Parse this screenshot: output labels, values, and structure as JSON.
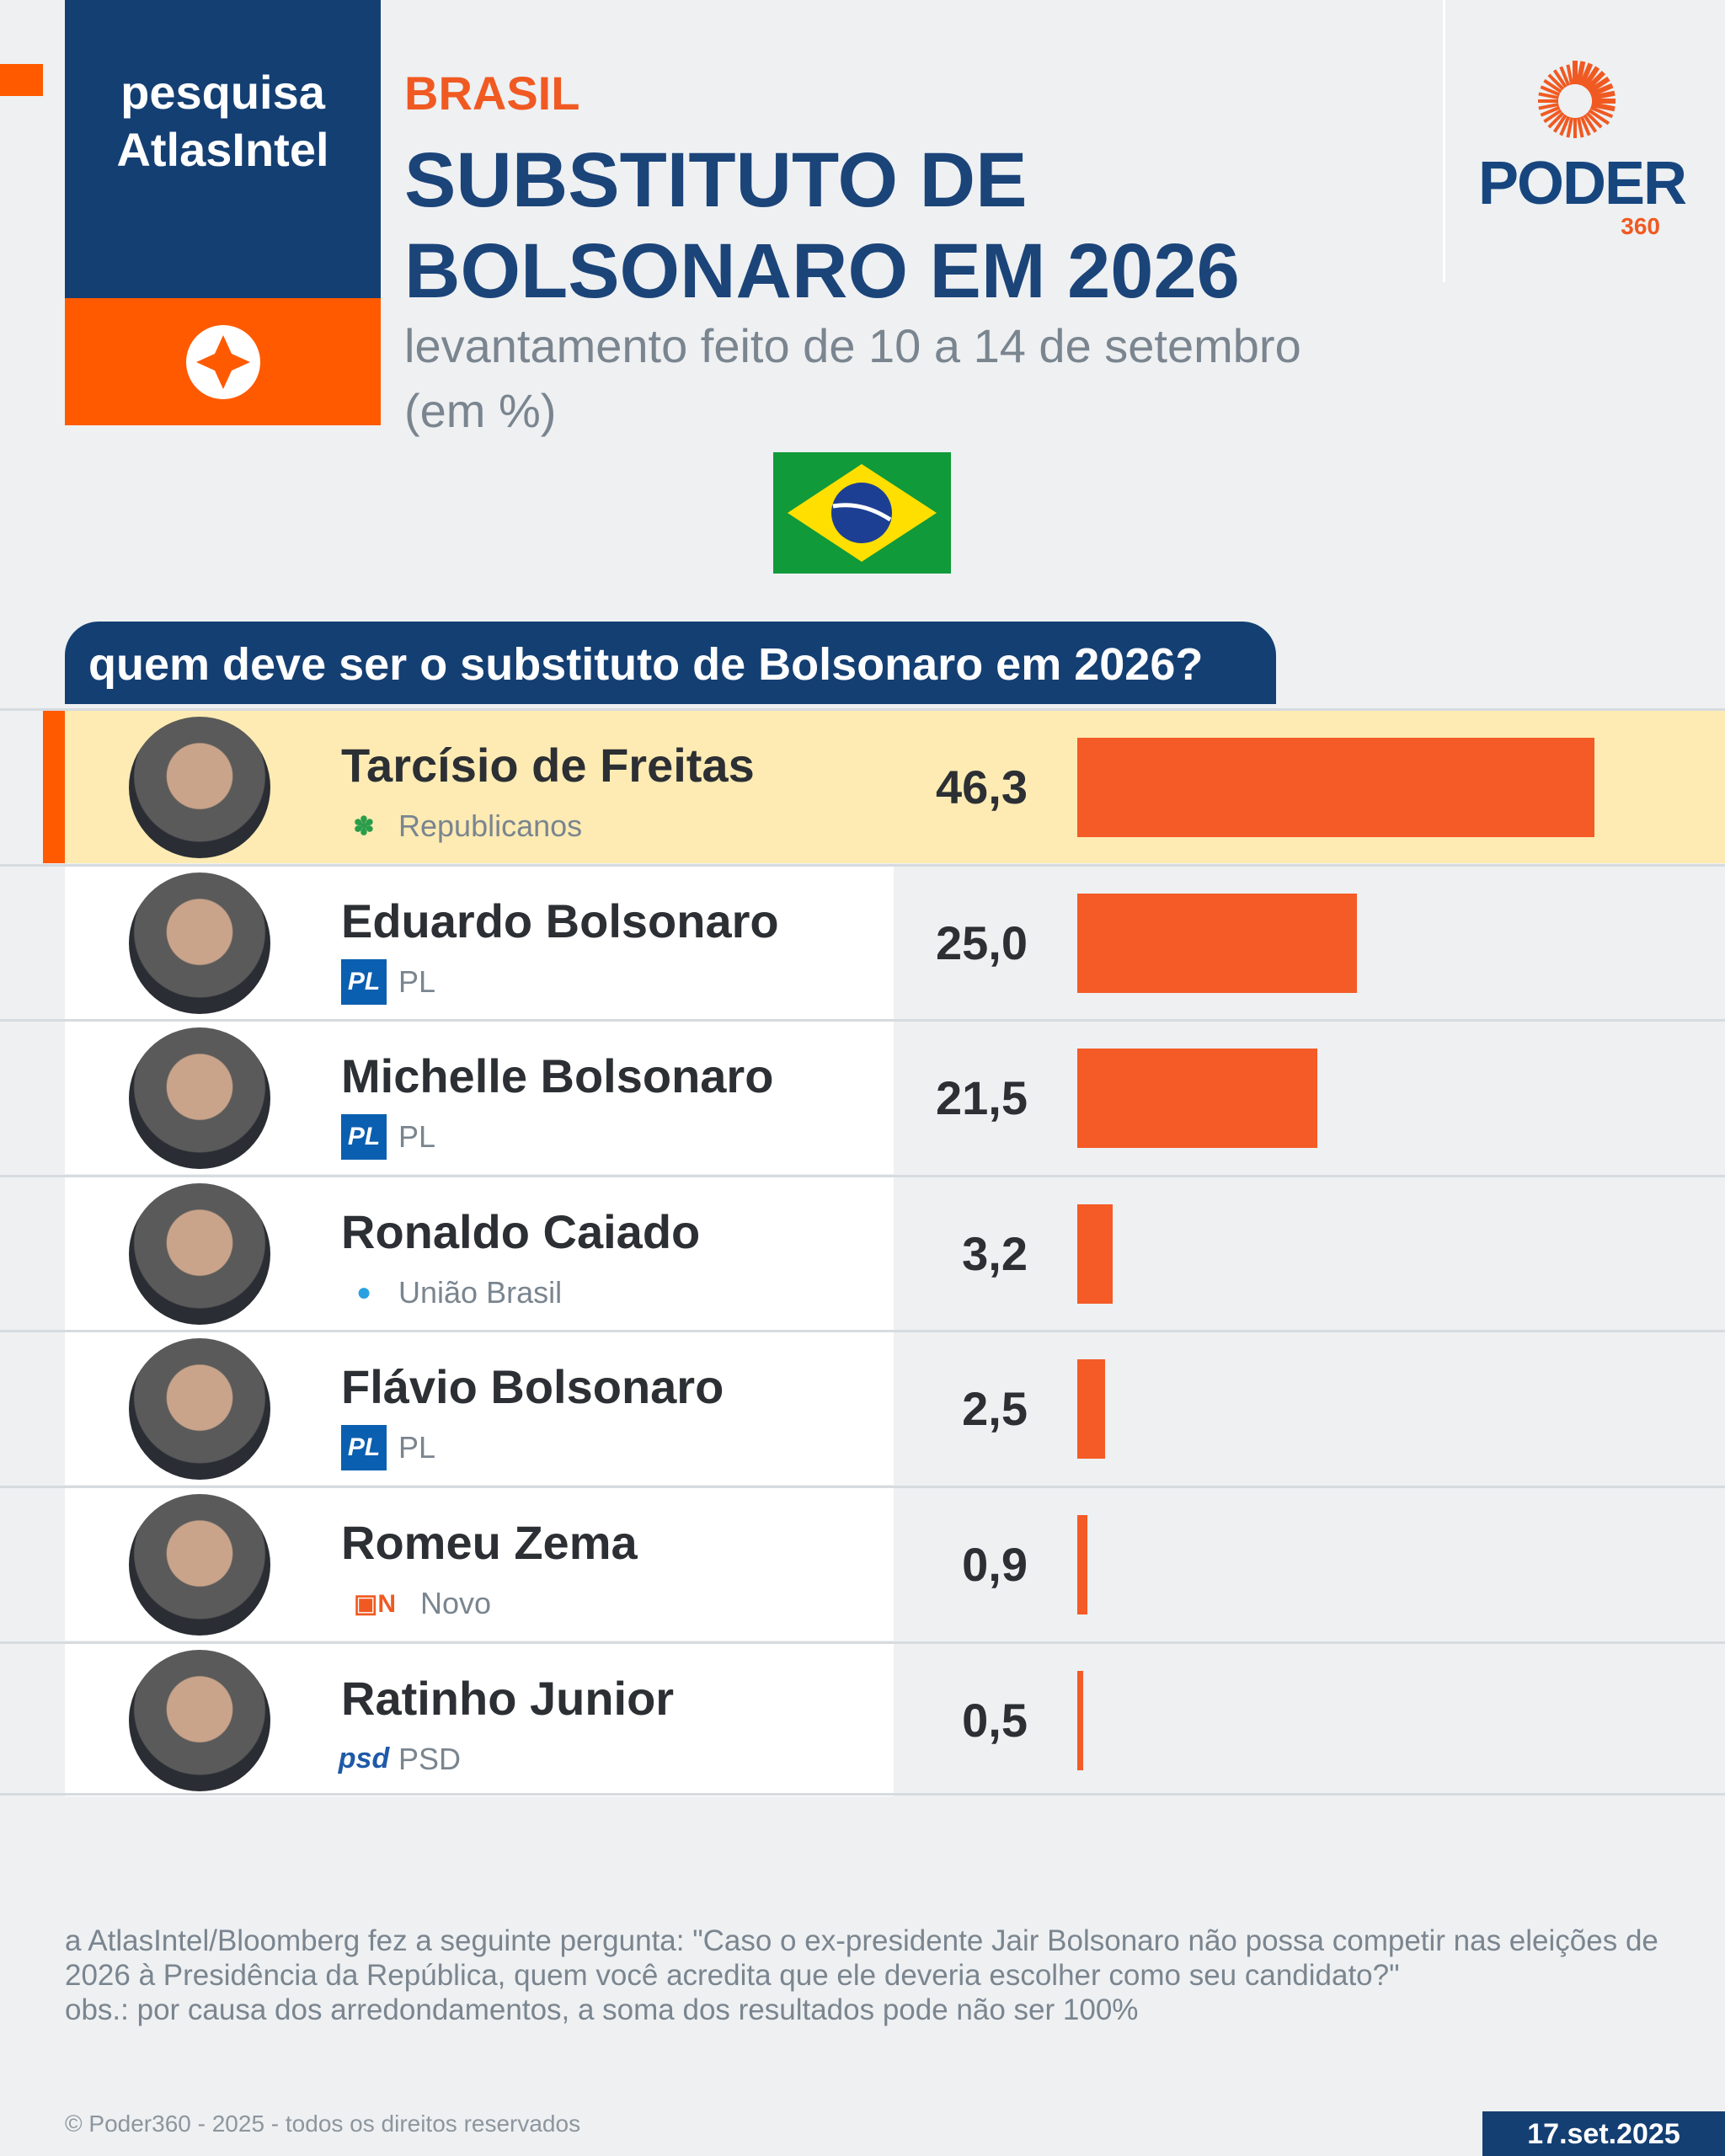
{
  "header": {
    "brand_line1": "pesquisa",
    "brand_line2": "AtlasIntel",
    "region": "BRASIL",
    "title_line1": "SUBSTITUTO DE",
    "title_line2": "BOLSONARO EM 2026",
    "subtitle_line1": "levantamento feito de 10 a 14 de setembro",
    "subtitle_line2": "(em %)"
  },
  "logo": {
    "name": "PODER",
    "number": "360"
  },
  "question": "quem deve ser o substituto de Bolsonaro em 2026?",
  "colors": {
    "bar": "#f45b26",
    "navy": "#143f73",
    "orange": "#ff5a00",
    "highlight": "#fdebb3"
  },
  "chart_data": {
    "type": "bar",
    "orientation": "horizontal",
    "categories": [
      "Tarcísio de Freitas",
      "Eduardo Bolsonaro",
      "Michelle Bolsonaro",
      "Ronaldo Caiado",
      "Flávio Bolsonaro",
      "Romeu Zema",
      "Ratinho Junior"
    ],
    "values": [
      46.3,
      25.0,
      21.5,
      3.2,
      2.5,
      0.9,
      0.5
    ],
    "labels": [
      "46,3",
      "25,0",
      "21,5",
      "3,2",
      "2,5",
      "0,9",
      "0,5"
    ],
    "parties": [
      "Republicanos",
      "PL",
      "PL",
      "União Brasil",
      "PL",
      "Novo",
      "PSD"
    ],
    "party_icons": [
      "republicanos-logo",
      "pl-logo",
      "pl-logo",
      "uniao-brasil-logo",
      "pl-logo",
      "novo-logo",
      "psd-logo"
    ],
    "highlighted": "Tarcísio de Freitas",
    "unit": "%"
  },
  "footer": {
    "note_line1": "a AtlasIntel/Bloomberg fez a seguinte pergunta: \"Caso o ex-presidente Jair Bolsonaro não possa competir nas eleições de 2026 à Presidência da República, quem você acredita que ele deveria escolher como seu candidato?\"",
    "note_line2": "obs.: por causa dos arredondamentos, a soma dos resultados pode não ser 100%",
    "copyright": "© Poder360 - 2025 - todos os direitos reservados",
    "date": "17.set.2025"
  }
}
